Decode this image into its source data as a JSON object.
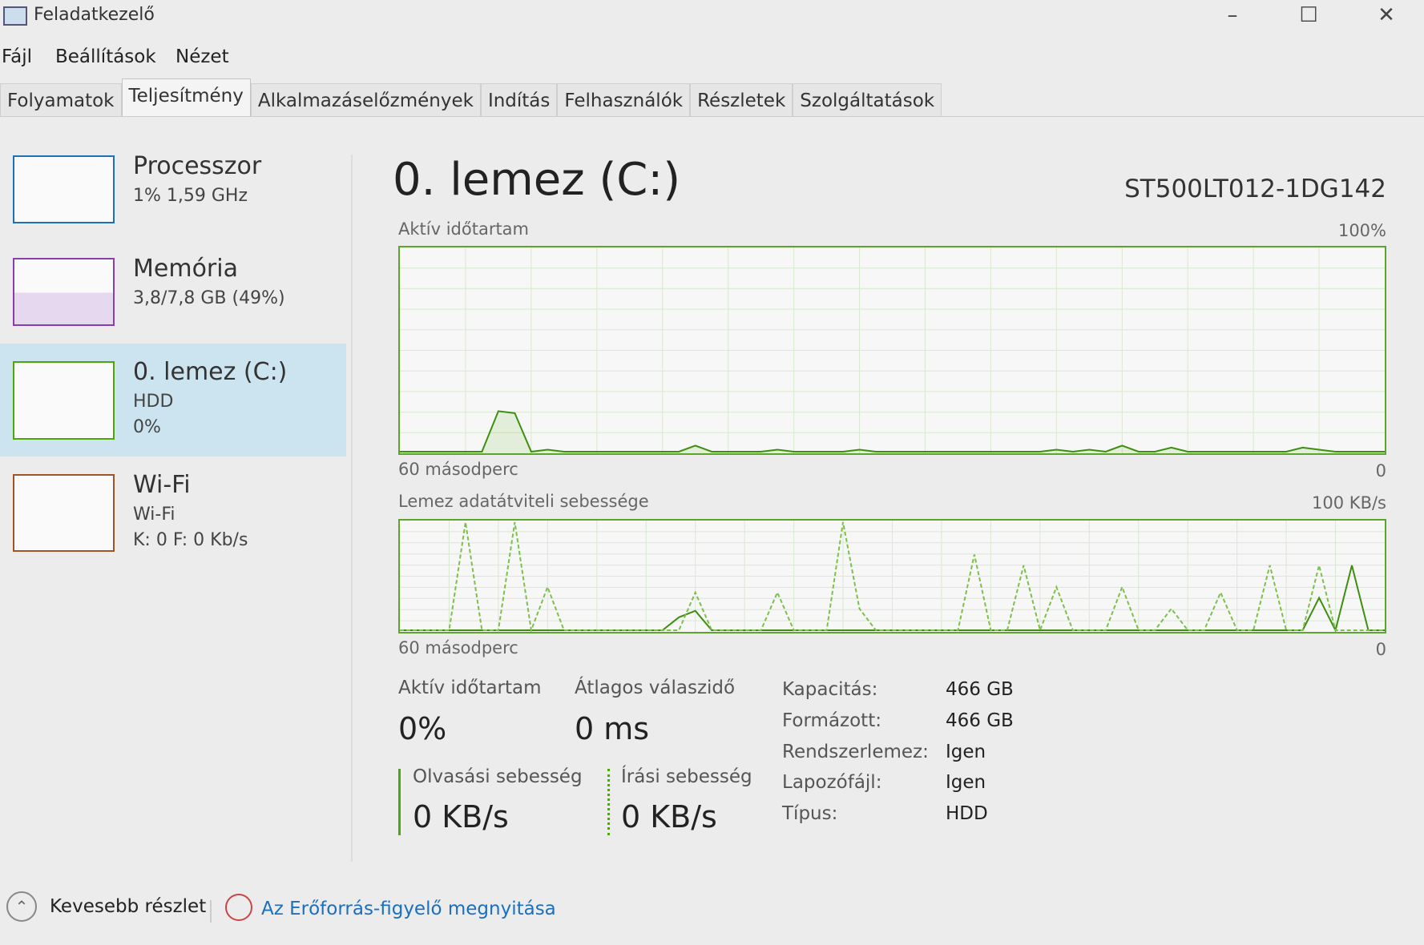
{
  "window": {
    "title": "Feladatkezelő",
    "minimize": "–",
    "maximize": "☐",
    "close": "✕"
  },
  "menu": [
    "Fájl",
    "Beállítások",
    "Nézet"
  ],
  "tabs": [
    {
      "label": "Folyamatok"
    },
    {
      "label": "Teljesítmény",
      "active": true
    },
    {
      "label": "Alkalmazáselőzmények"
    },
    {
      "label": "Indítás"
    },
    {
      "label": "Felhasználók"
    },
    {
      "label": "Részletek"
    },
    {
      "label": "Szolgáltatások"
    }
  ],
  "sidebar": [
    {
      "name": "Processzor",
      "sub1": "1% 1,59 GHz",
      "color": "#1c70b8"
    },
    {
      "name": "Memória",
      "sub1": "3,8/7,8 GB (49%)",
      "color": "#8a3fa8"
    },
    {
      "name": "0. lemez (C:)",
      "sub1": "HDD",
      "sub2": "0%",
      "color": "#4da60c",
      "selected": true
    },
    {
      "name": "Wi-Fi",
      "sub1": "Wi-Fi",
      "sub2": "K: 0 F: 0 Kb/s",
      "color": "#a0522d"
    }
  ],
  "main": {
    "title": "0. lemez (C:)",
    "model": "ST500LT012-1DG142"
  },
  "chart_data": [
    {
      "type": "line",
      "title": "Aktív időtartam",
      "ymax_label": "100%",
      "xlabel_left": "60 másodperc",
      "xlabel_right": "0",
      "ylim": [
        0,
        100
      ],
      "xlim": [
        60,
        0
      ],
      "grid": true,
      "series": [
        {
          "values": [
            0,
            0,
            0,
            0,
            0,
            0,
            20,
            19,
            0,
            1,
            0,
            0,
            0,
            0,
            0,
            0,
            0,
            0,
            3,
            0,
            0,
            0,
            0,
            1,
            0,
            0,
            0,
            0,
            1,
            0,
            0,
            0,
            0,
            0,
            0,
            0,
            0,
            0,
            0,
            0,
            1,
            0,
            1,
            0,
            3,
            0,
            0,
            2,
            0,
            0,
            0,
            0,
            0,
            0,
            0,
            2,
            1,
            0,
            0,
            0,
            0
          ]
        }
      ]
    },
    {
      "type": "line",
      "title": "Lemez adatátviteli sebessége",
      "ymax_label": "100 KB/s",
      "xlabel_left": "60 másodperc",
      "xlabel_right": "0",
      "ylim": [
        0,
        100
      ],
      "xlim": [
        60,
        0
      ],
      "grid": true,
      "series": [
        {
          "style": "solid",
          "values": [
            0,
            0,
            0,
            0,
            0,
            0,
            0,
            0,
            0,
            0,
            0,
            0,
            0,
            0,
            0,
            0,
            0,
            12,
            18,
            0,
            0,
            0,
            0,
            0,
            0,
            0,
            0,
            0,
            0,
            0,
            0,
            0,
            0,
            0,
            0,
            0,
            0,
            0,
            0,
            0,
            0,
            0,
            0,
            0,
            0,
            0,
            0,
            0,
            0,
            0,
            0,
            0,
            0,
            0,
            0,
            0,
            30,
            0,
            60,
            0,
            0
          ]
        },
        {
          "style": "dashed",
          "values": [
            0,
            0,
            0,
            0,
            100,
            0,
            0,
            100,
            0,
            40,
            0,
            0,
            0,
            0,
            0,
            0,
            0,
            0,
            35,
            0,
            0,
            0,
            0,
            35,
            0,
            0,
            0,
            100,
            20,
            0,
            0,
            0,
            0,
            0,
            0,
            70,
            0,
            0,
            60,
            0,
            40,
            0,
            0,
            0,
            40,
            0,
            0,
            20,
            0,
            0,
            35,
            0,
            0,
            60,
            0,
            0,
            60,
            0,
            0,
            0,
            0
          ]
        }
      ]
    }
  ],
  "stats": {
    "active_label": "Aktív időtartam",
    "active_value": "0%",
    "resp_label": "Átlagos válaszidő",
    "resp_value": "0 ms",
    "read_label": "Olvasási sebesség",
    "read_value": "0 KB/s",
    "write_label": "Írási sebesség",
    "write_value": "0 KB/s"
  },
  "props": [
    {
      "k": "Kapacitás:",
      "v": "466 GB"
    },
    {
      "k": "Formázott:",
      "v": "466 GB"
    },
    {
      "k": "Rendszerlemez:",
      "v": "Igen"
    },
    {
      "k": "Lapozófájl:",
      "v": "Igen"
    },
    {
      "k": "Típus:",
      "v": "HDD"
    }
  ],
  "footer": {
    "less": "Kevesebb részlet",
    "monitor": "Az Erőforrás-figyelő megnyitása"
  }
}
